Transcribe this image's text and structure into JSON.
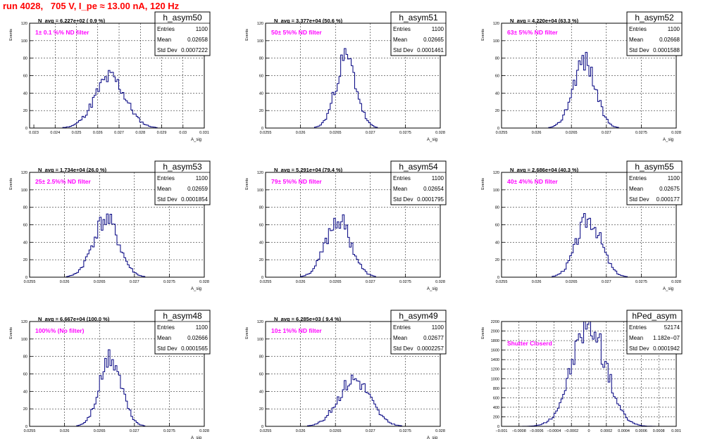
{
  "page": {
    "title": "run 4028,   705 V, I_pe ≈ 13.00 nA, 120 Hz"
  },
  "stats_labels": {
    "entries": "Entries",
    "mean": "Mean",
    "std": "Std Dev"
  },
  "chart_data": [
    {
      "type": "histogram",
      "name": "h_asym50",
      "ylabel": "Events",
      "xlabel": "A_sig",
      "navg": "N_avg = 6.227e+02 ( 0.9 %)",
      "annotation": "1± 0.1 %% ND filter",
      "entries": "1100",
      "mean": "0.02658",
      "std": "0.0007222",
      "xlim": [
        0.0228,
        0.031
      ],
      "ylim": [
        0,
        120
      ],
      "xticks": [
        0.023,
        0.024,
        0.025,
        0.026,
        0.027,
        0.028,
        0.029,
        0.03,
        0.031
      ],
      "xtick_labels": [
        "0.023",
        "0.024",
        "0.025",
        "0.026",
        "0.027",
        "0.028",
        "0.029",
        "0.03",
        "0.031"
      ],
      "yticks": [
        0,
        20,
        40,
        60,
        80,
        100,
        120
      ],
      "ytick_labels": [
        "0",
        "20",
        "40",
        "60",
        "80",
        "100",
        "120"
      ],
      "mu": 0.02658,
      "sigma": 0.00072,
      "peak": 58,
      "seed": 11
    },
    {
      "type": "histogram",
      "name": "h_asym51",
      "ylabel": "Events",
      "xlabel": "A_sig",
      "navg": "N_avg = 3.377e+04 (50.6 %)",
      "annotation": "50± 5%% ND filter",
      "entries": "1100",
      "mean": "0.02665",
      "std": "0.0001461",
      "xlim": [
        0.0255,
        0.028
      ],
      "ylim": [
        0,
        120
      ],
      "xticks": [
        0.0255,
        0.026,
        0.0265,
        0.027,
        0.0275,
        0.028
      ],
      "xtick_labels": [
        "0.0255",
        "0.026",
        "0.0265",
        "0.027",
        "0.0275",
        "0.028"
      ],
      "yticks": [
        0,
        20,
        40,
        60,
        80,
        100,
        120
      ],
      "ytick_labels": [
        "0",
        "20",
        "40",
        "60",
        "80",
        "100",
        "120"
      ],
      "mu": 0.02665,
      "sigma": 0.000146,
      "peak": 80,
      "seed": 23
    },
    {
      "type": "histogram",
      "name": "h_asym52",
      "ylabel": "Events",
      "xlabel": "A_sig",
      "navg": "N_avg = 4.220e+04 (63.3 %)",
      "annotation": "63± 5%% ND filter",
      "entries": "1100",
      "mean": "0.02668",
      "std": "0.0001588",
      "xlim": [
        0.0255,
        0.028
      ],
      "ylim": [
        0,
        120
      ],
      "xticks": [
        0.0255,
        0.026,
        0.0265,
        0.027,
        0.0275,
        0.028
      ],
      "xtick_labels": [
        "0.0255",
        "0.026",
        "0.0265",
        "0.027",
        "0.0275",
        "0.028"
      ],
      "yticks": [
        0,
        20,
        40,
        60,
        80,
        100,
        120
      ],
      "ytick_labels": [
        "0",
        "20",
        "40",
        "60",
        "80",
        "100",
        "120"
      ],
      "mu": 0.02668,
      "sigma": 0.000159,
      "peak": 78,
      "seed": 37
    },
    {
      "type": "histogram",
      "name": "h_asym53",
      "ylabel": "Events",
      "xlabel": "A_sig",
      "navg": "N_avg = 1.734e+04 (26.0 %)",
      "annotation": "25± 2.5%% ND filter",
      "entries": "1100",
      "mean": "0.02659",
      "std": "0.0001854",
      "xlim": [
        0.0255,
        0.028
      ],
      "ylim": [
        0,
        120
      ],
      "xticks": [
        0.0255,
        0.026,
        0.0265,
        0.027,
        0.0275,
        0.028
      ],
      "xtick_labels": [
        "0.0255",
        "0.026",
        "0.0265",
        "0.027",
        "0.0275",
        "0.028"
      ],
      "yticks": [
        0,
        20,
        40,
        60,
        80,
        100,
        120
      ],
      "ytick_labels": [
        "0",
        "20",
        "40",
        "60",
        "80",
        "100",
        "120"
      ],
      "mu": 0.02659,
      "sigma": 0.000185,
      "peak": 66,
      "seed": 41
    },
    {
      "type": "histogram",
      "name": "h_asym54",
      "ylabel": "Events",
      "xlabel": "A_sig",
      "navg": "N_avg = 5.291e+04 (79.4 %)",
      "annotation": "79± 5%% ND filter",
      "entries": "1100",
      "mean": "0.02654",
      "std": "0.0001795",
      "xlim": [
        0.0255,
        0.028
      ],
      "ylim": [
        0,
        120
      ],
      "xticks": [
        0.0255,
        0.026,
        0.0265,
        0.027,
        0.0275,
        0.028
      ],
      "xtick_labels": [
        "0.0255",
        "0.026",
        "0.0265",
        "0.027",
        "0.0275",
        "0.028"
      ],
      "yticks": [
        0,
        20,
        40,
        60,
        80,
        100,
        120
      ],
      "ytick_labels": [
        "0",
        "20",
        "40",
        "60",
        "80",
        "100",
        "120"
      ],
      "mu": 0.02654,
      "sigma": 0.00018,
      "peak": 66,
      "seed": 53
    },
    {
      "type": "histogram",
      "name": "h_asym55",
      "ylabel": "Events",
      "xlabel": "A_sig",
      "navg": "N_avg = 2.686e+04 (40.3 %)",
      "annotation": "40± 4%% ND filter",
      "entries": "1100",
      "mean": "0.02675",
      "std": "0.000177",
      "xlim": [
        0.0255,
        0.028
      ],
      "ylim": [
        0,
        120
      ],
      "xticks": [
        0.0255,
        0.026,
        0.0265,
        0.027,
        0.0275,
        0.028
      ],
      "xtick_labels": [
        "0.0255",
        "0.026",
        "0.0265",
        "0.027",
        "0.0275",
        "0.028"
      ],
      "yticks": [
        0,
        20,
        40,
        60,
        80,
        100,
        120
      ],
      "ytick_labels": [
        "0",
        "20",
        "40",
        "60",
        "80",
        "100",
        "120"
      ],
      "mu": 0.02675,
      "sigma": 0.000177,
      "peak": 67,
      "seed": 67
    },
    {
      "type": "histogram",
      "name": "h_asym48",
      "ylabel": "Events",
      "xlabel": "A_sig",
      "navg": "N_avg = 6.667e+04 (100.0 %)",
      "annotation": "100%% (No filter)",
      "entries": "1100",
      "mean": "0.02666",
      "std": "0.0001565",
      "xlim": [
        0.0255,
        0.028
      ],
      "ylim": [
        0,
        120
      ],
      "xticks": [
        0.0255,
        0.026,
        0.0265,
        0.027,
        0.0275,
        0.028
      ],
      "xtick_labels": [
        "0.0255",
        "0.026",
        "0.0265",
        "0.027",
        "0.0275",
        "0.028"
      ],
      "yticks": [
        0,
        20,
        40,
        60,
        80,
        100,
        120
      ],
      "ytick_labels": [
        "0",
        "20",
        "40",
        "60",
        "80",
        "100",
        "120"
      ],
      "mu": 0.02666,
      "sigma": 0.000157,
      "peak": 77,
      "seed": 71
    },
    {
      "type": "histogram",
      "name": "h_asym49",
      "ylabel": "Events",
      "xlabel": "A_sig",
      "navg": "N_avg = 6.285e+03 ( 9.4 %)",
      "annotation": "10± 1%% ND filter",
      "entries": "1100",
      "mean": "0.02677",
      "std": "0.0002257",
      "xlim": [
        0.0255,
        0.028
      ],
      "ylim": [
        0,
        120
      ],
      "xticks": [
        0.0255,
        0.026,
        0.0265,
        0.027,
        0.0275,
        0.028
      ],
      "xtick_labels": [
        "0.0255",
        "0.026",
        "0.0265",
        "0.027",
        "0.0275",
        "0.028"
      ],
      "yticks": [
        0,
        20,
        40,
        60,
        80,
        100,
        120
      ],
      "ytick_labels": [
        "0",
        "20",
        "40",
        "60",
        "80",
        "100",
        "120"
      ],
      "mu": 0.02677,
      "sigma": 0.000226,
      "peak": 54,
      "seed": 83
    },
    {
      "type": "histogram",
      "name": "hPed_asym",
      "ylabel": "Events",
      "xlabel": "",
      "navg": "",
      "annotation": "Shutter Closerd",
      "entries": "52174",
      "mean": "1.182e−07",
      "std": "0.0001942",
      "xlim": [
        -0.001,
        0.001
      ],
      "ylim": [
        0,
        2200
      ],
      "xticks": [
        -0.001,
        -0.0008,
        -0.0006,
        -0.0004,
        -0.0002,
        0,
        0.0002,
        0.0004,
        0.0006,
        0.0008,
        0.001
      ],
      "xtick_labels": [
        "−0.001",
        "−0.0008",
        "−0.0006",
        "−0.0004",
        "−0.0002",
        "0",
        "0.0002",
        "0.0004",
        "0.0006",
        "0.0008",
        "0.001"
      ],
      "yticks": [
        0,
        200,
        400,
        600,
        800,
        1000,
        1200,
        1400,
        1600,
        1800,
        2000,
        2200
      ],
      "ytick_labels": [
        "0",
        "200",
        "400",
        "600",
        "800",
        "1000",
        "1200",
        "1400",
        "1600",
        "1800",
        "2000",
        "2200"
      ],
      "mu": 0.0,
      "sigma": 0.000194,
      "peak": 2130,
      "seed": 97
    }
  ]
}
